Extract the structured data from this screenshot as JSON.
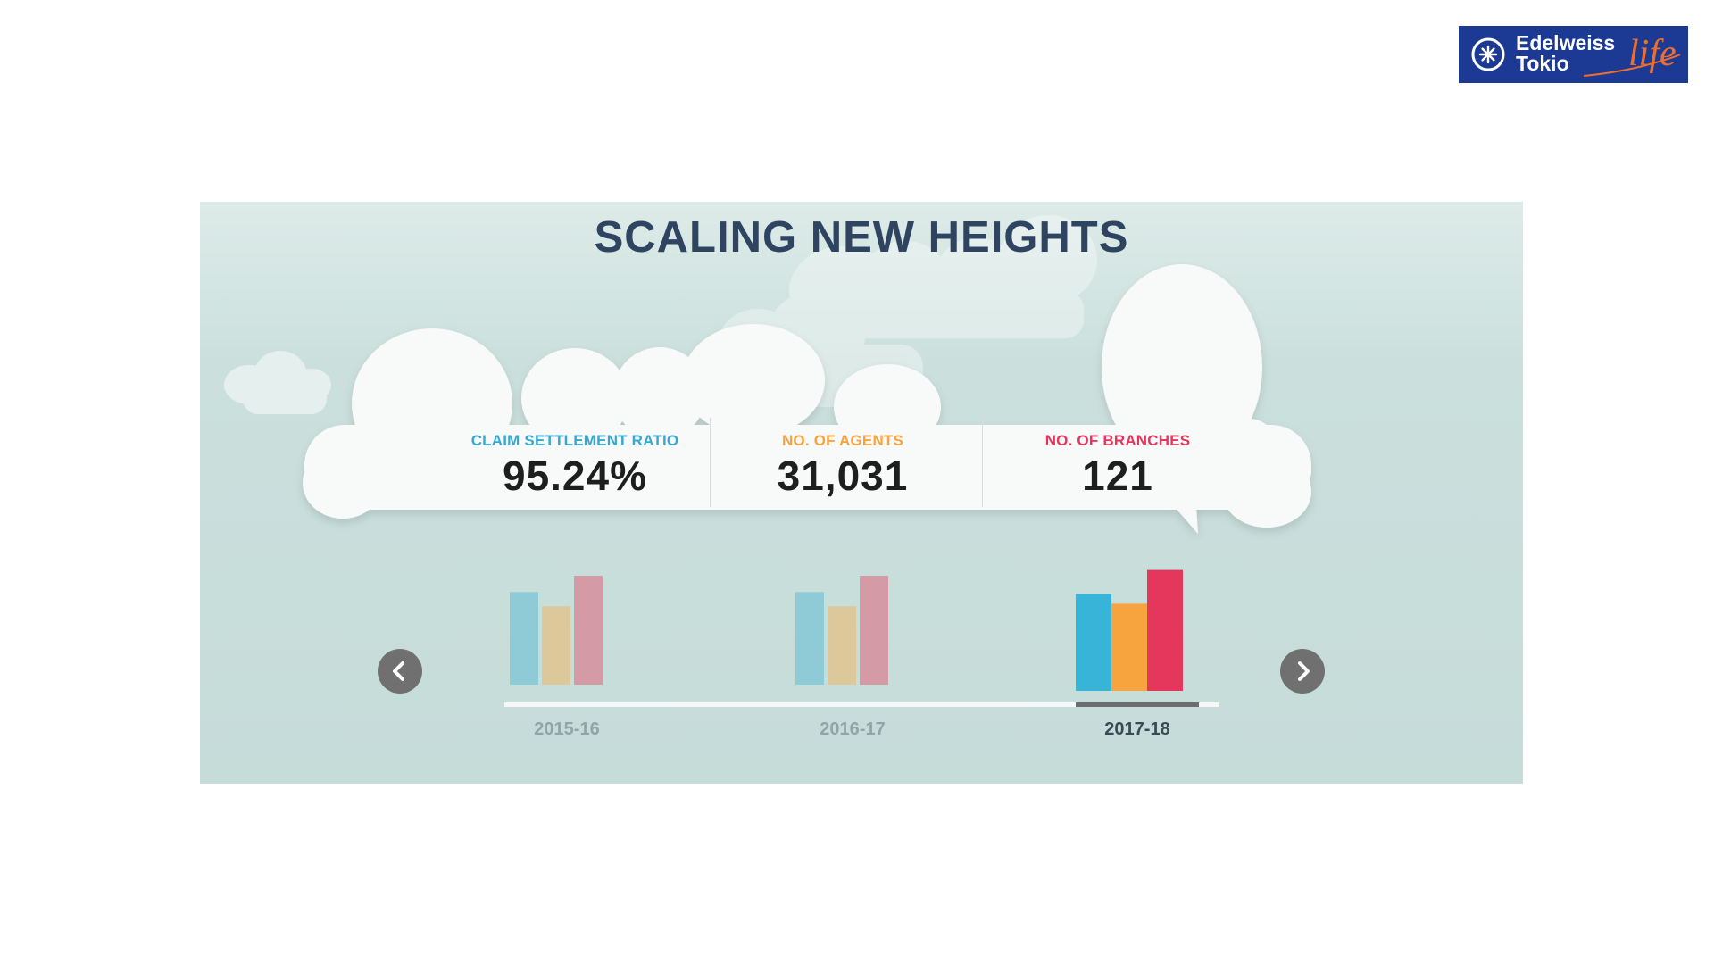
{
  "logo": {
    "line1": "Edelweiss",
    "line2": "Tokio",
    "script": "life"
  },
  "banner": {
    "title": "SCALING NEW HEIGHTS",
    "stats": [
      {
        "label": "CLAIM SETTLEMENT RATIO",
        "value": "95.24%",
        "color": "#38a8d0"
      },
      {
        "label": "NO. OF AGENTS",
        "value": "31,031",
        "color": "#f7a33e"
      },
      {
        "label": "NO. OF BRANCHES",
        "value": "121",
        "color": "#e5365c"
      }
    ],
    "nav": {
      "prev_icon": "chevron-left-icon",
      "next_icon": "chevron-right-icon"
    }
  },
  "chart_data": {
    "type": "bar",
    "categories": [
      "2015-16",
      "2016-17",
      "2017-18"
    ],
    "active_category": "2017-18",
    "series": [
      {
        "values": [
          85,
          85,
          89
        ],
        "color_active": "#38b4d8",
        "color_inactive": "#8ecbd7"
      },
      {
        "values": [
          72,
          72,
          80
        ],
        "color_active": "#f7a33e",
        "color_inactive": "#dcc89b"
      },
      {
        "values": [
          100,
          100,
          111
        ],
        "color_active": "#e5365c",
        "color_inactive": "#d49aa6"
      }
    ],
    "xlabel": "",
    "ylabel": "",
    "axes_visible": false
  }
}
